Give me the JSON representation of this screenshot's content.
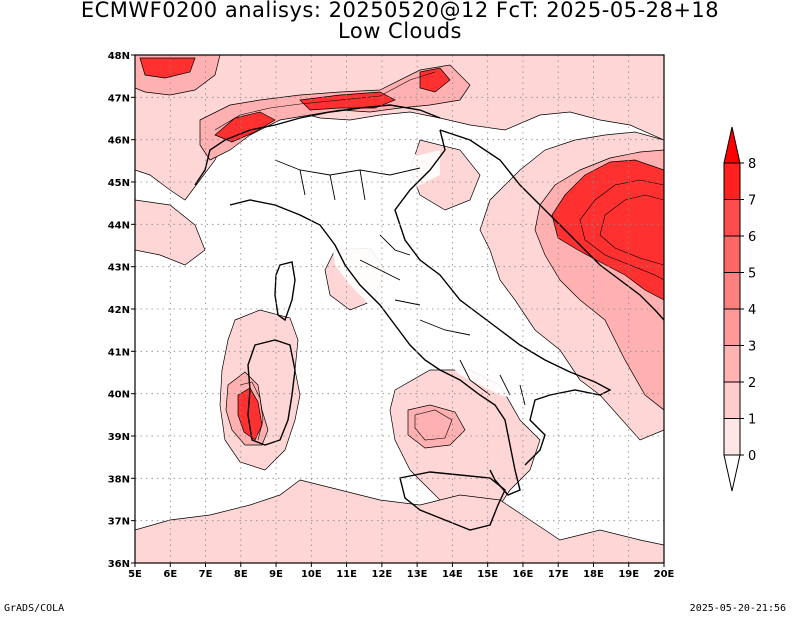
{
  "title": {
    "line1": "ECMWF0200 analisys: 20250520@12 FcT: 2025-05-28+18",
    "line2": "Low Clouds"
  },
  "footer": {
    "left": "GrADS/COLA",
    "right": "2025-05-20-21:56"
  },
  "map": {
    "lon_labels": [
      "5E",
      "6E",
      "7E",
      "8E",
      "9E",
      "10E",
      "11E",
      "12E",
      "13E",
      "14E",
      "15E",
      "16E",
      "17E",
      "18E",
      "19E",
      "20E"
    ],
    "lat_labels": [
      "48N",
      "47N",
      "46N",
      "45N",
      "44N",
      "43N",
      "42N",
      "41N",
      "40N",
      "39N",
      "38N",
      "37N",
      "36N"
    ],
    "lon_range": [
      5,
      20
    ],
    "lat_range": [
      36,
      48
    ],
    "grid": "dotted"
  },
  "colorbar": {
    "labels": [
      "0",
      "1",
      "2",
      "3",
      "4",
      "5",
      "6",
      "7",
      "8"
    ],
    "colors": [
      "#ffffff",
      "#ffe6e6",
      "#ffcccc",
      "#ffb3b3",
      "#ff9999",
      "#ff8080",
      "#ff6666",
      "#ff4d4d",
      "#ff2020",
      "#ff0000"
    ]
  },
  "colors": {
    "low": "#ffd9d9",
    "mid": "#ffa0a0",
    "high": "#ff2a2a",
    "contour": "#000000"
  }
}
